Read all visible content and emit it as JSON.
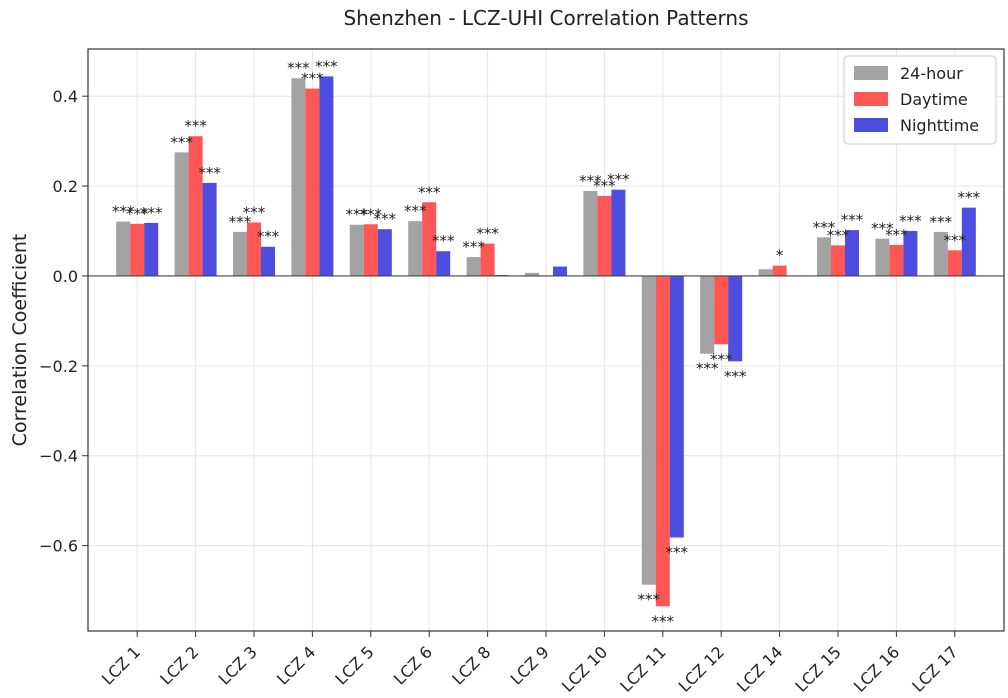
{
  "chart_data": {
    "type": "bar",
    "title": "Shenzhen - LCZ-UHI Correlation Patterns",
    "xlabel": "",
    "ylabel": "Correlation Coefficient",
    "ylim": [
      -0.79,
      0.505
    ],
    "yticks": [
      -0.6,
      -0.4,
      -0.2,
      0.0,
      0.2,
      0.4
    ],
    "ytick_labels": [
      "−0.6",
      "−0.4",
      "−0.2",
      "0.0",
      "0.2",
      "0.4"
    ],
    "grid": true,
    "legend_position": "top-right",
    "categories": [
      "LCZ 1",
      "LCZ 2",
      "LCZ 3",
      "LCZ 4",
      "LCZ 5",
      "LCZ 6",
      "LCZ 8",
      "LCZ 9",
      "LCZ 10",
      "LCZ 11",
      "LCZ 12",
      "LCZ 14",
      "LCZ 15",
      "LCZ 16",
      "LCZ 17"
    ],
    "series": [
      {
        "name": "24-hour",
        "color": "#999999",
        "values": [
          0.121,
          0.275,
          0.098,
          0.44,
          0.114,
          0.122,
          0.042,
          0.007,
          0.189,
          -0.687,
          -0.173,
          0.015,
          0.086,
          0.083,
          0.098
        ],
        "significance": [
          "***",
          "***",
          "***",
          "***",
          "***",
          "***",
          "***",
          "",
          "***",
          "***",
          "***",
          "",
          "***",
          "***",
          "***"
        ]
      },
      {
        "name": "Daytime",
        "color": "#ff4444",
        "values": [
          0.116,
          0.311,
          0.119,
          0.417,
          0.115,
          0.164,
          0.072,
          0.0,
          0.178,
          -0.735,
          -0.152,
          0.023,
          0.068,
          0.069,
          0.057
        ],
        "significance": [
          "***",
          "***",
          "***",
          "***",
          "***",
          "***",
          "***",
          "",
          "***",
          "***",
          "***",
          "*",
          "***",
          "***",
          "***"
        ]
      },
      {
        "name": "Nighttime",
        "color": "#3a3adb",
        "values": [
          0.118,
          0.207,
          0.065,
          0.444,
          0.104,
          0.055,
          0.002,
          0.021,
          0.192,
          -0.582,
          -0.19,
          0.0,
          0.102,
          0.1,
          0.152
        ],
        "significance": [
          "***",
          "***",
          "***",
          "***",
          "***",
          "***",
          "",
          "",
          "***",
          "***",
          "***",
          "",
          "***",
          "***",
          "***"
        ]
      }
    ]
  }
}
